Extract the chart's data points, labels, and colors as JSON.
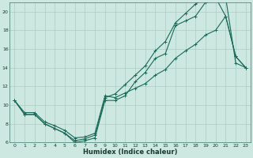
{
  "xlabel": "Humidex (Indice chaleur)",
  "background_color": "#cce8e0",
  "grid_color": "#aaccc4",
  "line_color": "#1a6a5a",
  "xlim": [
    -0.5,
    23.5
  ],
  "ylim": [
    6,
    21
  ],
  "xticks": [
    0,
    1,
    2,
    3,
    4,
    5,
    6,
    7,
    8,
    9,
    10,
    11,
    12,
    13,
    14,
    15,
    16,
    17,
    18,
    19,
    20,
    21,
    22,
    23
  ],
  "yticks": [
    6,
    8,
    10,
    12,
    14,
    16,
    18,
    20
  ],
  "line1_x": [
    0,
    1,
    2,
    3,
    4,
    5,
    6,
    7,
    8,
    9,
    10,
    11,
    12,
    13,
    14,
    15,
    16,
    17,
    18,
    19,
    20,
    21,
    22,
    23
  ],
  "line1_y": [
    10.5,
    9.0,
    9.0,
    8.0,
    7.5,
    7.0,
    6.0,
    6.2,
    6.5,
    10.5,
    10.5,
    11.0,
    12.5,
    13.5,
    15.0,
    15.5,
    18.5,
    19.0,
    19.5,
    21.0,
    21.5,
    21.5,
    14.5,
    14.0
  ],
  "line2_x": [
    0,
    1,
    2,
    3,
    4,
    5,
    6,
    7,
    8,
    9,
    10,
    11,
    12,
    13,
    14,
    15,
    16,
    17,
    18,
    19,
    20,
    21,
    22,
    23
  ],
  "line2_y": [
    10.5,
    9.0,
    9.0,
    8.0,
    7.5,
    7.0,
    6.2,
    6.4,
    6.8,
    10.8,
    11.2,
    12.2,
    13.2,
    14.2,
    15.8,
    16.8,
    18.8,
    19.8,
    20.8,
    21.5,
    21.5,
    19.5,
    15.2,
    14.0
  ],
  "line3_x": [
    0,
    1,
    2,
    3,
    4,
    5,
    6,
    7,
    8,
    9,
    10,
    11,
    12,
    13,
    14,
    15,
    16,
    17,
    18,
    19,
    20,
    21,
    22,
    23
  ],
  "line3_y": [
    10.5,
    9.2,
    9.2,
    8.2,
    7.8,
    7.3,
    6.5,
    6.6,
    7.0,
    11.0,
    10.8,
    11.3,
    11.8,
    12.3,
    13.2,
    13.8,
    15.0,
    15.8,
    16.5,
    17.5,
    18.0,
    19.5,
    15.2,
    14.0
  ]
}
